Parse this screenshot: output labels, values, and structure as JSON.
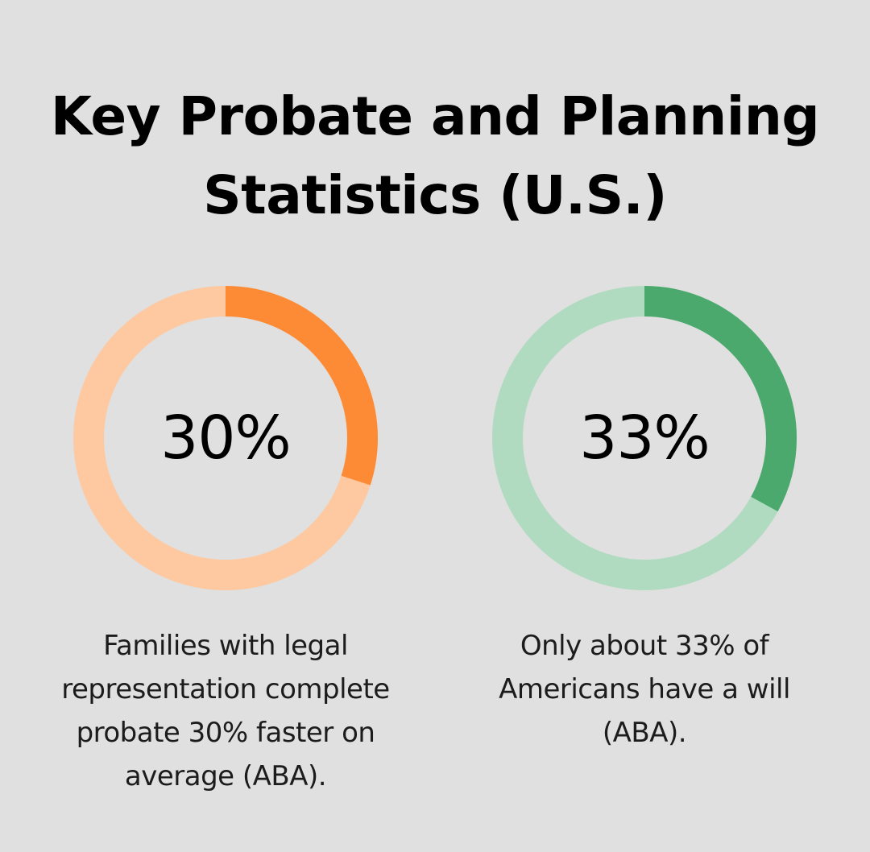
{
  "title": "Key Probate and Planning Statistics (U.S.)",
  "chart_data": [
    {
      "type": "pie",
      "variant": "donut",
      "value_label": "30%",
      "value": 30,
      "max": 100,
      "caption": "Families with legal representation complete probate 30% faster on average (ABA).",
      "colors": {
        "filled": "#fd8a35",
        "track": "#fec9a1"
      }
    },
    {
      "type": "pie",
      "variant": "donut",
      "value_label": "33%",
      "value": 33,
      "max": 100,
      "caption": "Only about 33% of Americans have a will (ABA).",
      "colors": {
        "filled": "#4ca96d",
        "track": "#b1dbc0"
      }
    }
  ]
}
